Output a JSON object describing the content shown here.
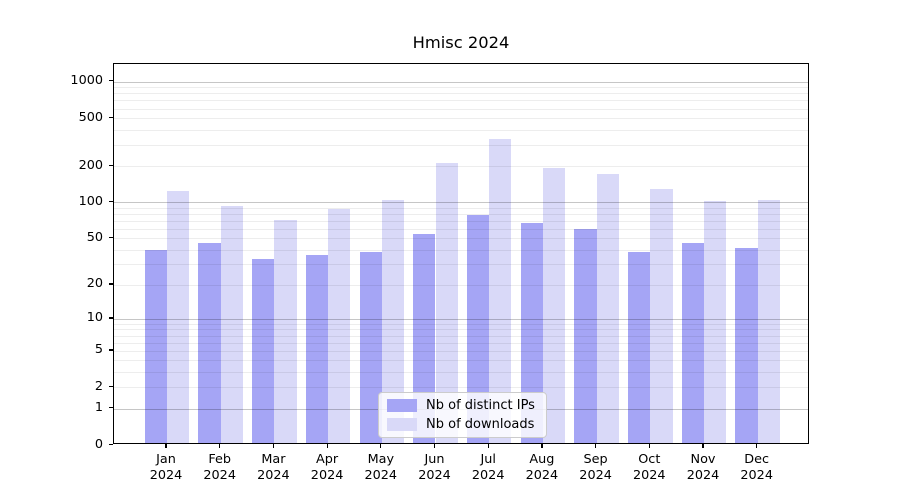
{
  "figure": {
    "title": "Hmisc 2024",
    "background_color": "#ffffff",
    "axis_color": "#000000"
  },
  "chart_data": {
    "type": "bar",
    "title": "Hmisc 2024",
    "categories": [
      "Jan 2024",
      "Feb 2024",
      "Mar 2024",
      "Apr 2024",
      "May 2024",
      "Jun 2024",
      "Jul 2024",
      "Aug 2024",
      "Sep 2024",
      "Oct 2024",
      "Nov 2024",
      "Dec 2024"
    ],
    "series": [
      {
        "name": "Nb of distinct IPs",
        "color": "#a5a5f5",
        "values": [
          38,
          44,
          32,
          35,
          37,
          52,
          75,
          64,
          57,
          37,
          44,
          40
        ]
      },
      {
        "name": "Nb of downloads",
        "color": "#d9d9f8",
        "values": [
          119,
          90,
          68,
          85,
          100,
          203,
          322,
          184,
          165,
          124,
          98,
          100
        ]
      }
    ],
    "xlabel": "",
    "ylabel": "",
    "yscale": "log1p",
    "ylim": [
      0,
      1400
    ],
    "y_tick_values": [
      0,
      1,
      2,
      5,
      10,
      20,
      50,
      100,
      200,
      500,
      1000
    ],
    "y_tick_labels": [
      "0",
      "1",
      "2",
      "5",
      "10",
      "20",
      "50",
      "100",
      "200",
      "500",
      "1000"
    ],
    "grid": true,
    "major_grid_color": "#c6c6c6",
    "minor_grid_color": "#ededed",
    "legend_position": "inside-bottom-center"
  }
}
